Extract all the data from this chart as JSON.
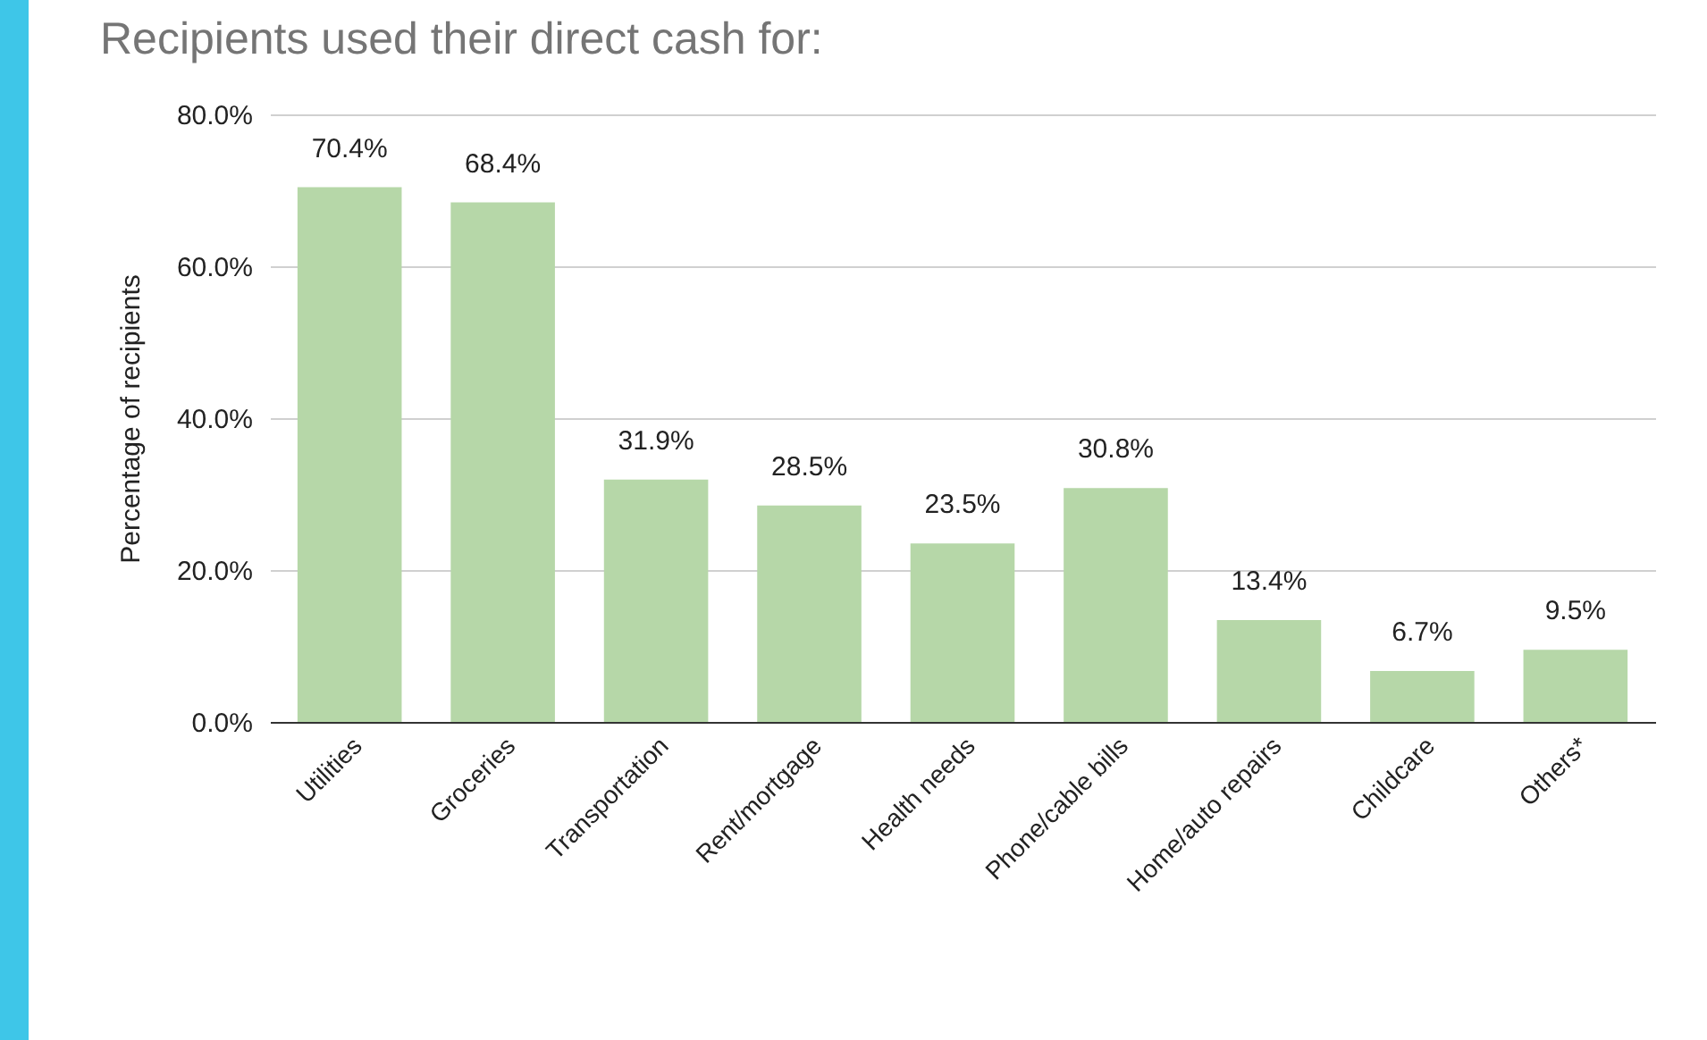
{
  "chart_data": {
    "type": "bar",
    "title": "Recipients used their direct cash for:",
    "ylabel": "Percentage of recipients",
    "categories": [
      "Utilities",
      "Groceries",
      "Transportation",
      "Rent/mortgage",
      "Health needs",
      "Phone/cable bills",
      "Home/auto repairs",
      "Childcare",
      "Others*"
    ],
    "values": [
      70.4,
      68.4,
      31.9,
      28.5,
      23.5,
      30.8,
      13.4,
      6.7,
      9.5
    ],
    "value_labels": [
      "70.4%",
      "68.4%",
      "31.9%",
      "28.5%",
      "23.5%",
      "30.8%",
      "13.4%",
      "6.7%",
      "9.5%"
    ],
    "color": "#b6d7a8",
    "ylim": [
      0,
      80
    ],
    "yticks": [
      {
        "value": 0,
        "label": "0.0%"
      },
      {
        "value": 20,
        "label": "20.0%"
      },
      {
        "value": 40,
        "label": "40.0%"
      },
      {
        "value": 60,
        "label": "60.0%"
      },
      {
        "value": 80,
        "label": "80.0%"
      }
    ],
    "grid": "y"
  }
}
